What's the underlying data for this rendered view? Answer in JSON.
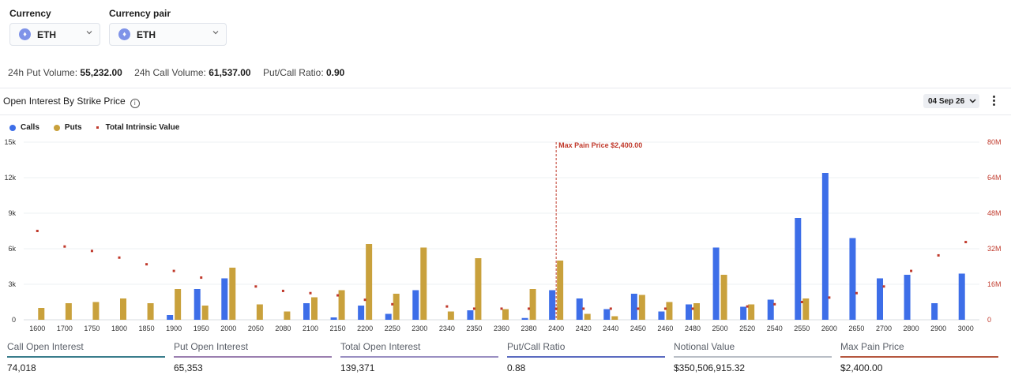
{
  "selectors": {
    "currency": {
      "label": "Currency",
      "value": "ETH"
    },
    "pair": {
      "label": "Currency pair",
      "value": "ETH"
    }
  },
  "coin_glyph": "♦",
  "stats": [
    {
      "label": "24h Put Volume:",
      "value": "55,232.00"
    },
    {
      "label": "24h Call Volume:",
      "value": "61,537.00"
    },
    {
      "label": "Put/Call Ratio:",
      "value": "0.90"
    }
  ],
  "section_title": "Open Interest By Strike Price",
  "expiry": "04 Sep 26",
  "colors": {
    "calls": "#3d6ee8",
    "puts": "#c9a13c",
    "intrinsic": "#c0392b",
    "grid": "#eef0f3"
  },
  "chart_data": {
    "type": "bar",
    "categories": [
      "1600",
      "1700",
      "1750",
      "1800",
      "1850",
      "1900",
      "1950",
      "2000",
      "2050",
      "2080",
      "2100",
      "2150",
      "2200",
      "2250",
      "2300",
      "2340",
      "2350",
      "2360",
      "2380",
      "2400",
      "2420",
      "2440",
      "2450",
      "2460",
      "2480",
      "2500",
      "2520",
      "2540",
      "2550",
      "2600",
      "2650",
      "2700",
      "2800",
      "2900",
      "3000"
    ],
    "series": [
      {
        "name": "Calls",
        "axis": "left",
        "values": [
          0,
          0,
          0,
          0,
          0,
          400,
          2600,
          3500,
          0,
          0,
          1400,
          200,
          1200,
          500,
          2500,
          0,
          800,
          0,
          150,
          2500,
          1800,
          900,
          2200,
          700,
          1300,
          6100,
          1100,
          1700,
          8600,
          12400,
          6900,
          3500,
          3800,
          1400,
          3900
        ]
      },
      {
        "name": "Puts",
        "axis": "left",
        "values": [
          1000,
          1400,
          1500,
          1800,
          1400,
          2600,
          1200,
          4400,
          1300,
          700,
          1900,
          2500,
          6400,
          2200,
          6100,
          700,
          5200,
          900,
          2600,
          5000,
          500,
          300,
          2100,
          1500,
          1400,
          3800,
          1300,
          0,
          1800,
          0,
          0,
          0,
          0,
          0,
          0
        ]
      },
      {
        "name": "Total Intrinsic Value",
        "axis": "right",
        "values": [
          40,
          33,
          31,
          28,
          25,
          22,
          19,
          0,
          15,
          13,
          12,
          11,
          9,
          7,
          0,
          6,
          5,
          5,
          5,
          5,
          5,
          5,
          5,
          5,
          5,
          0,
          6,
          7,
          8,
          10,
          12,
          15,
          22,
          29,
          35
        ]
      }
    ],
    "legend": [
      "Calls",
      "Puts",
      "Total Intrinsic Value"
    ],
    "legend_position": "top-left",
    "y_left": {
      "min": 0,
      "max": 15000,
      "ticks": [
        "0",
        "3k",
        "6k",
        "9k",
        "12k",
        "15k"
      ]
    },
    "y_right": {
      "min": 0,
      "max": 80,
      "ticks": [
        "0",
        "16M",
        "32M",
        "48M",
        "64M",
        "80M"
      ]
    },
    "max_pain": {
      "strike": "2400",
      "label": "Max Pain Price $2,400.00"
    },
    "grid": true
  },
  "metrics": [
    {
      "label": "Call Open Interest",
      "value": "74,018",
      "color": "#3a7d8c"
    },
    {
      "label": "Put Open Interest",
      "value": "65,353",
      "color": "#9b7fb0"
    },
    {
      "label": "Total Open Interest",
      "value": "139,371",
      "color": "#9a8fc2"
    },
    {
      "label": "Put/Call Ratio",
      "value": "0.88",
      "color": "#5b6bc0"
    },
    {
      "label": "Notional Value",
      "value": "$350,506,915.32",
      "color": "#b9bec6"
    },
    {
      "label": "Max Pain Price",
      "value": "$2,400.00",
      "color": "#b5573f"
    }
  ]
}
